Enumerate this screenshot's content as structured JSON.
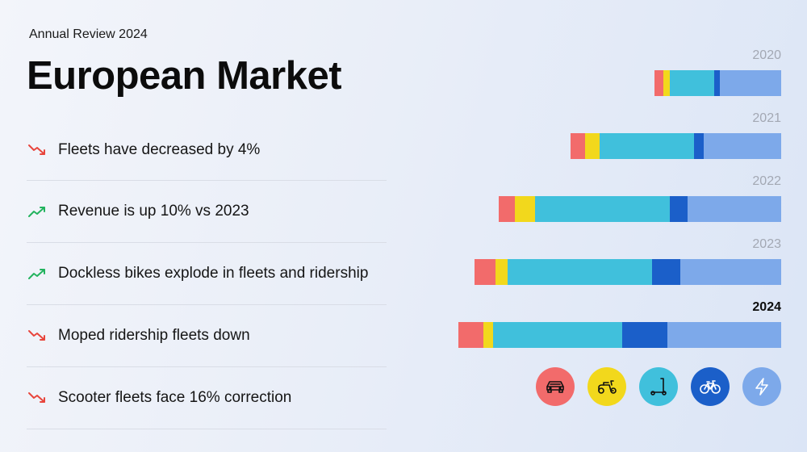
{
  "header": {
    "eyebrow": "Annual Review 2024",
    "title": "European Market"
  },
  "highlights": [
    {
      "text": "Fleets have decreased by 4%",
      "trend": "down",
      "icon": "trend-down-icon"
    },
    {
      "text": "Revenue is up 10% vs 2023",
      "trend": "up",
      "icon": "trend-up-icon"
    },
    {
      "text": "Dockless bikes explode in fleets and ridership",
      "trend": "up",
      "icon": "trend-up-icon"
    },
    {
      "text": "Moped ridership fleets down",
      "trend": "down",
      "icon": "trend-down-icon"
    },
    {
      "text": "Scooter fleets face 16% correction",
      "trend": "down",
      "icon": "trend-down-icon"
    }
  ],
  "colors": {
    "trend_up": "#22b35e",
    "trend_down": "#e8453c"
  },
  "chart_data": {
    "type": "bar",
    "orientation": "horizontal",
    "stacked": true,
    "categories": [
      "2020",
      "2021",
      "2022",
      "2023",
      "2024"
    ],
    "highlighted_category": "2024",
    "series": [
      {
        "key": "car",
        "icon": "car-icon",
        "color": "#f26b6b",
        "values": [
          11,
          18,
          20,
          26,
          31
        ]
      },
      {
        "key": "moped",
        "icon": "moped-icon",
        "color": "#f2d81c",
        "values": [
          8,
          18,
          25,
          15,
          12
        ]
      },
      {
        "key": "scooter",
        "icon": "scooter-icon",
        "color": "#40c0dc",
        "values": [
          55,
          117,
          167,
          179,
          160
        ]
      },
      {
        "key": "bike",
        "icon": "bike-icon",
        "color": "#1b5fc9",
        "values": [
          7,
          12,
          22,
          35,
          56
        ]
      },
      {
        "key": "ebike",
        "icon": "lightning-icon",
        "color": "#7da9ea",
        "values": [
          76,
          96,
          116,
          125,
          141
        ]
      }
    ],
    "axes_visible": false,
    "grid": false
  }
}
